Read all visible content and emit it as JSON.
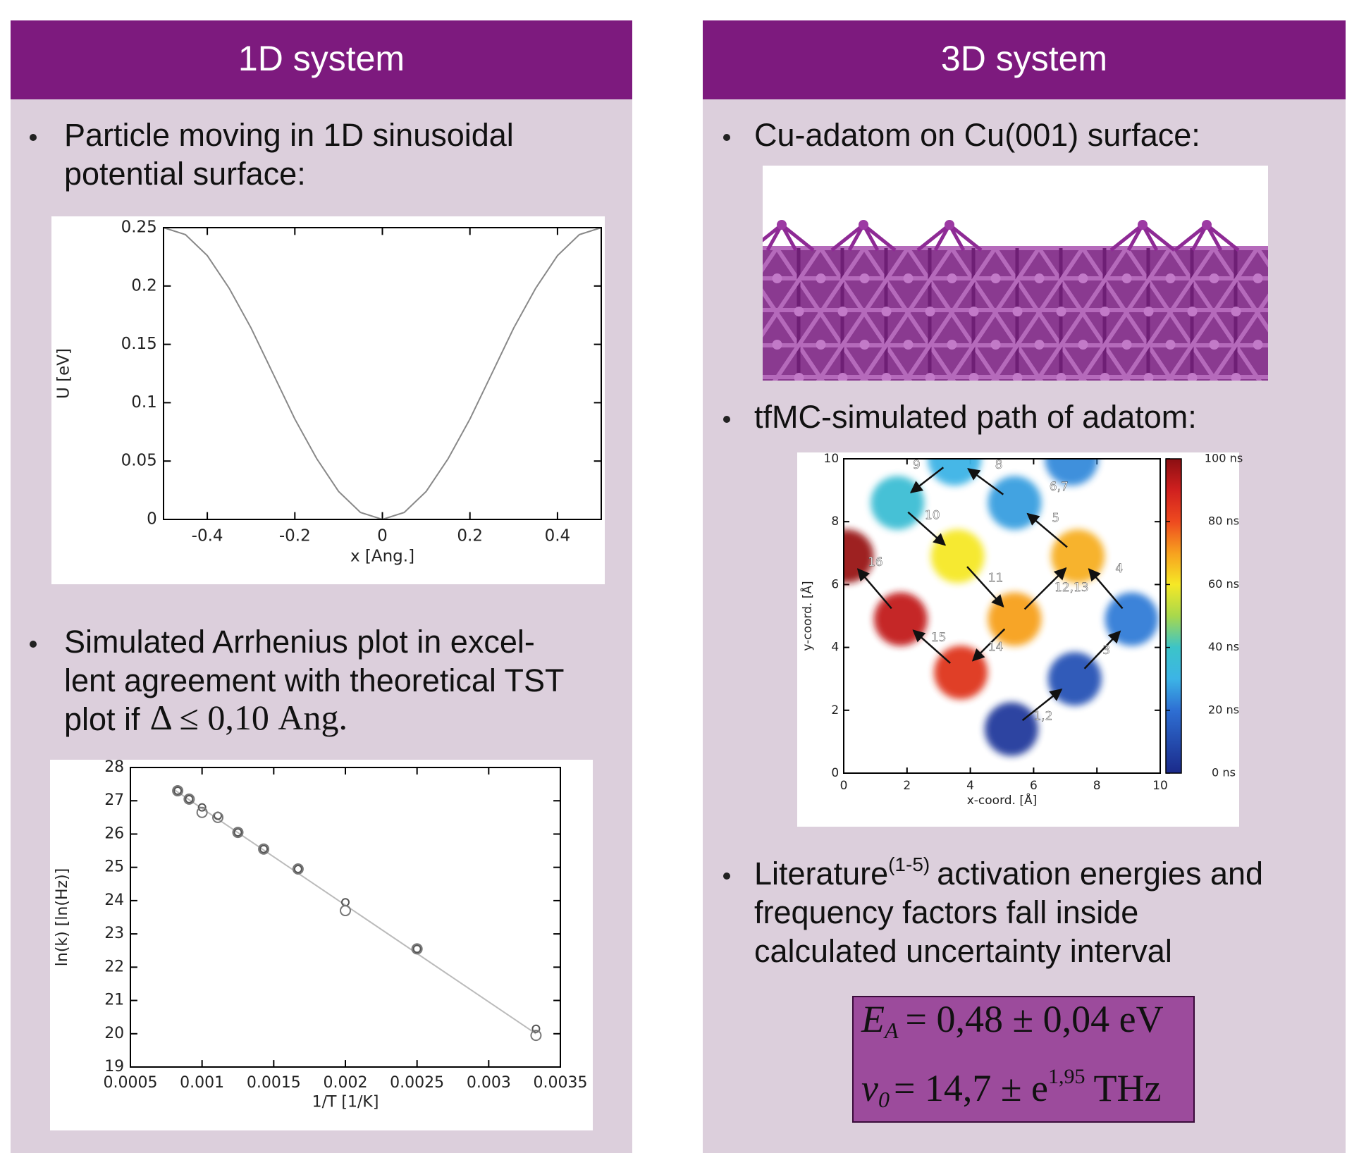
{
  "left_panel": {
    "title": "1D system",
    "bullets": [
      [
        "Particle moving in 1D sinusoidal",
        "potential surface:"
      ],
      [
        "Simulated Arrhenius plot in excel-",
        "lent agreement with theoretical TST",
        "plot if"
      ]
    ],
    "condition": "Δ ≤ 0,10 Ang."
  },
  "right_panel": {
    "title": "3D system",
    "bullets": [
      "Cu-adatom on Cu(001) surface:",
      "tfMC-simulated path of adatom:"
    ],
    "literature_bullet": {
      "word": "Literature",
      "ref": "(1-5)",
      "rest": "activation energies and",
      "lines": [
        "frequency factors fall inside",
        "calculated uncertainty interval"
      ]
    },
    "formula": [
      {
        "symbol": "E",
        "sub": "A",
        "rhs": "= 0,48 ± 0,04 eV"
      },
      {
        "symbol": "ν",
        "sub": "0",
        "rhs_pre": "= 14,7 ± e",
        "sup": "1,95",
        "rhs_post": "THz"
      }
    ]
  },
  "chart_data": [
    {
      "type": "line",
      "x": [
        -0.5,
        -0.45,
        -0.4,
        -0.35,
        -0.3,
        -0.25,
        -0.2,
        -0.15,
        -0.1,
        -0.05,
        0,
        0.05,
        0.1,
        0.15,
        0.2,
        0.25,
        0.3,
        0.35,
        0.4,
        0.45,
        0.5
      ],
      "values": [
        0.25,
        0.244,
        0.226,
        0.198,
        0.164,
        0.125,
        0.086,
        0.052,
        0.024,
        0.006,
        0,
        0.006,
        0.024,
        0.052,
        0.086,
        0.125,
        0.164,
        0.198,
        0.226,
        0.244,
        0.25
      ],
      "color": "#888888",
      "x_label": "x [Ang.]",
      "y_label": "U [eV]",
      "xlim": [
        -0.5,
        0.5
      ],
      "ylim": [
        0,
        0.25
      ],
      "xticks": [
        -0.4,
        -0.2,
        0,
        0.2,
        0.4
      ],
      "yticks": [
        0,
        0.05,
        0.1,
        0.15,
        0.2,
        0.25
      ]
    },
    {
      "type": "scatter",
      "x_label": "1/T [1/K]",
      "y_label": "ln(k) [ln(Hz)]",
      "xlim": [
        0.0005,
        0.0035
      ],
      "ylim": [
        19,
        28
      ],
      "xticks": [
        0.0005,
        0.001,
        0.0015,
        0.002,
        0.0025,
        0.003,
        0.0035
      ],
      "yticks": [
        19,
        20,
        21,
        22,
        23,
        24,
        25,
        26,
        27,
        28
      ],
      "series": [
        {
          "mode": "line",
          "color": "#bbbbbb",
          "x": [
            0.0008,
            0.00333
          ],
          "values": [
            27.35,
            20.0
          ]
        },
        {
          "mode": "markers",
          "color": "#555555",
          "x": [
            0.00083,
            0.00091,
            0.001,
            0.00111,
            0.00125,
            0.00143,
            0.00167,
            0.002,
            0.0025,
            0.00333
          ],
          "values": [
            27.3,
            27.05,
            26.8,
            26.55,
            26.05,
            25.55,
            24.95,
            23.95,
            22.55,
            20.15
          ]
        },
        {
          "mode": "markers",
          "color": "#777777",
          "x": [
            0.00083,
            0.00091,
            0.001,
            0.00111,
            0.00125,
            0.00143,
            0.00167,
            0.002,
            0.0025,
            0.00333
          ],
          "values": [
            27.3,
            27.05,
            26.65,
            26.5,
            26.05,
            25.55,
            24.95,
            23.7,
            22.55,
            19.95
          ]
        }
      ]
    },
    {
      "type": "scatter",
      "x_label": "x-coord. [Å]",
      "y_label": "y-coord. [Å]",
      "xlim": [
        0,
        10
      ],
      "ylim": [
        0,
        10
      ],
      "xticks": [
        0,
        2,
        4,
        6,
        8,
        10
      ],
      "yticks": [
        0,
        2,
        4,
        6,
        8,
        10
      ],
      "series": [
        {
          "mode": "clouds",
          "x": [
            5.3,
            7.3,
            9.1,
            7.4,
            5.4,
            7.2,
            3.5,
            1.7,
            3.6,
            5.4,
            3.7,
            1.8,
            0.1
          ],
          "values": [
            1.4,
            3.0,
            4.9,
            6.9,
            8.6,
            10,
            10,
            8.6,
            6.9,
            4.9,
            3.2,
            4.9,
            6.9
          ],
          "c": [
            5,
            12,
            22,
            68,
            27,
            24,
            30,
            36,
            60,
            70,
            85,
            92,
            98
          ]
        }
      ],
      "annotations": [
        "1,2",
        "3",
        "4",
        "5",
        "6,7",
        "8",
        "9",
        "10",
        "11",
        "12,13",
        "14",
        "15",
        "16"
      ],
      "colorbar": {
        "lim": [
          0,
          100
        ],
        "ticks": [
          {
            "value": 0,
            "label": "0 ns"
          },
          {
            "value": 20,
            "label": "20 ns"
          },
          {
            "value": 40,
            "label": "40 ns"
          },
          {
            "value": 60,
            "label": "60 ns"
          },
          {
            "value": 80,
            "label": "80 ns"
          },
          {
            "value": 100,
            "label": "100 ns"
          }
        ]
      }
    }
  ]
}
